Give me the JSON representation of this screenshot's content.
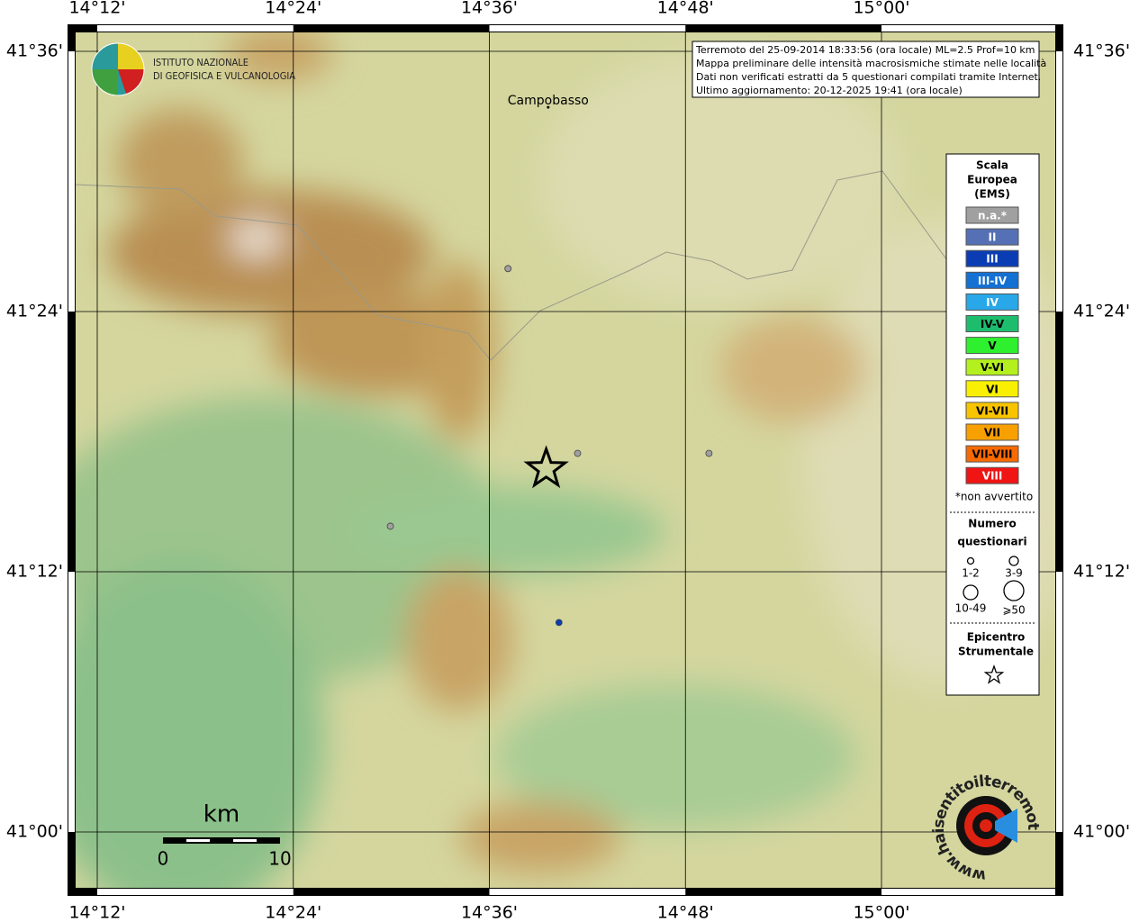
{
  "map": {
    "lon_ticks": [
      {
        "value": 14.2,
        "label": "14°12'"
      },
      {
        "value": 14.4,
        "label": "14°24'"
      },
      {
        "value": 14.6,
        "label": "14°36'"
      },
      {
        "value": 14.8,
        "label": "14°48'"
      },
      {
        "value": 15.0,
        "label": "15°00'"
      }
    ],
    "lat_ticks": [
      {
        "value": 41.6,
        "label": "41°36'"
      },
      {
        "value": 41.4,
        "label": "41°24'"
      },
      {
        "value": 41.2,
        "label": "41°12'"
      },
      {
        "value": 41.0,
        "label": "41°00'"
      }
    ],
    "city": {
      "name": "Campobasso",
      "lon": 14.66,
      "lat": 41.557
    },
    "points": [
      {
        "lon": 14.619,
        "lat": 41.433,
        "color": "#a0a0a0"
      },
      {
        "lon": 14.69,
        "lat": 41.291,
        "color": "#a0a0a0"
      },
      {
        "lon": 14.824,
        "lat": 41.291,
        "color": "#a0a0a0"
      },
      {
        "lon": 14.499,
        "lat": 41.235,
        "color": "#a0a0a0"
      },
      {
        "lon": 14.671,
        "lat": 41.161,
        "color": "#0a3cb4"
      }
    ],
    "epicenter": {
      "lon": 14.658,
      "lat": 41.279
    }
  },
  "info_box": [
    "Terremoto del 25-09-2014 18:33:56 (ora locale) ML=2.5 Prof=10 km",
    "Mappa preliminare delle intensità macrosismiche stimate nelle località",
    "Dati non verificati estratti da 5 questionari compilati tramite Internet.",
    "Ultimo aggiornamento: 20-12-2025 19:41 (ora locale)"
  ],
  "logo": [
    "ISTITUTO NAZIONALE",
    "DI GEOFISICA E VULCANOLOGIA"
  ],
  "site_logo": "www.haisentitoilterremoto.it",
  "legend": {
    "title": [
      "Scala",
      "Europea",
      "(EMS)"
    ],
    "items": [
      {
        "label": "n.a.*",
        "color": "#a0a0a0",
        "text_color": "#ffffff"
      },
      {
        "label": "II",
        "color": "#5570b4",
        "text_color": "#ffffff"
      },
      {
        "label": "III",
        "color": "#0a3cb4",
        "text_color": "#ffffff"
      },
      {
        "label": "III-IV",
        "color": "#1470d2",
        "text_color": "#ffffff"
      },
      {
        "label": "IV",
        "color": "#28a8e8",
        "text_color": "#ffffff"
      },
      {
        "label": "IV-V",
        "color": "#1ebd6e",
        "text_color": "#000000"
      },
      {
        "label": "V",
        "color": "#2ef02e",
        "text_color": "#000000"
      },
      {
        "label": "V-VI",
        "color": "#b4f01e",
        "text_color": "#000000"
      },
      {
        "label": "VI",
        "color": "#f8f000",
        "text_color": "#000000"
      },
      {
        "label": "VI-VII",
        "color": "#f8c400",
        "text_color": "#000000"
      },
      {
        "label": "VII",
        "color": "#f8a000",
        "text_color": "#000000"
      },
      {
        "label": "VII-VIII",
        "color": "#f86a00",
        "text_color": "#000000"
      },
      {
        "label": "VIII",
        "color": "#f01414",
        "text_color": "#ffffff"
      }
    ],
    "note": "*non avvertito",
    "count_title": [
      "Numero",
      "questionari"
    ],
    "count_sizes": [
      "1-2",
      "3-9",
      "10-49",
      "⩾50"
    ],
    "epicenter_title": [
      "Epicentro",
      "Strumentale"
    ]
  },
  "scale_bar": {
    "unit": "km",
    "labels": [
      "0",
      "10"
    ]
  }
}
